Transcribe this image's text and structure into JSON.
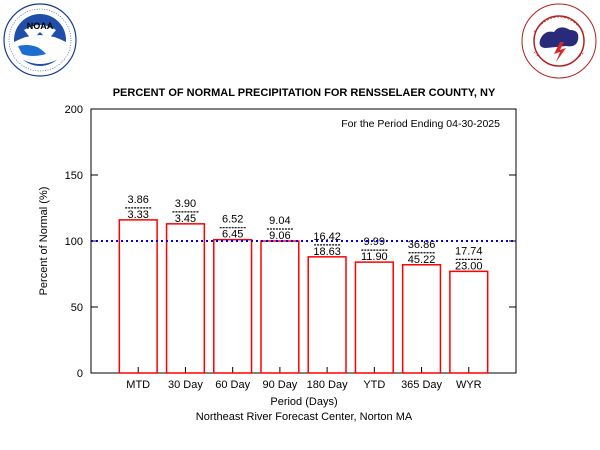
{
  "logos": {
    "left": {
      "icon": "noaa-logo",
      "ring_text": "NATIONAL OCEANIC AND ATMOSPHERIC ADMINISTRATION · U.S. DEPARTMENT OF COMMERCE",
      "center_text": "NOAA"
    },
    "right": {
      "icon": "nws-logo",
      "ring_text": "NATIONAL WEATHER SERVICE"
    }
  },
  "chart_data": {
    "type": "bar",
    "title": "PERCENT OF NORMAL PRECIPITATION FOR RENSSELAER COUNTY, NY",
    "subtitle": "For the Period Ending 04-30-2025",
    "xlabel": "Period (Days)",
    "ylabel": "Percent of Normal (%)",
    "credit": "Northeast River Forecast Center, Norton MA",
    "ylim": [
      0,
      200
    ],
    "yticks": [
      0,
      50,
      100,
      150,
      200
    ],
    "grid": false,
    "reference_line": {
      "value": 100,
      "color": "#0000dd",
      "style": "dotted"
    },
    "bar_color": "#ff0000",
    "categories": [
      "MTD",
      "30 Day",
      "60 Day",
      "90 Day",
      "180 Day",
      "YTD",
      "365 Day",
      "WYR"
    ],
    "values": [
      116,
      113,
      101,
      100,
      88,
      84,
      82,
      77
    ],
    "observed": [
      "3.86",
      "3.90",
      "6.52",
      "9.04",
      "16.42",
      "9.99",
      "36.86",
      "17.74"
    ],
    "normal": [
      "3.33",
      "3.45",
      "6.45",
      "9.06",
      "18.63",
      "11.90",
      "45.22",
      "23.00"
    ]
  }
}
